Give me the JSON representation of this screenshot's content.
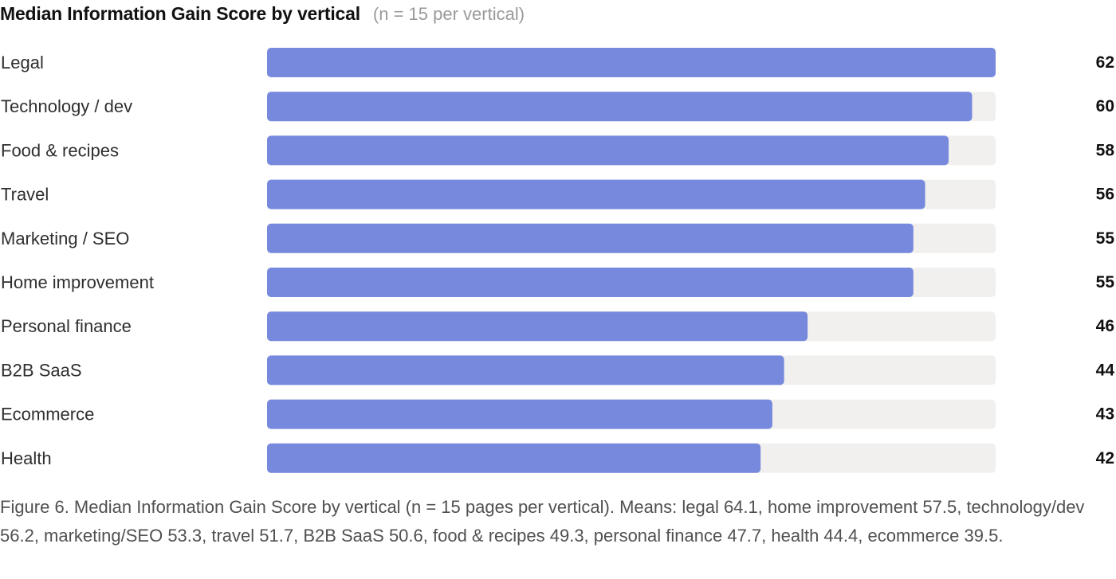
{
  "chart_data": {
    "type": "bar",
    "orientation": "horizontal",
    "title": "Median Information Gain Score by vertical",
    "subtitle": "(n = 15 per vertical)",
    "categories": [
      "Legal",
      "Technology / dev",
      "Food & recipes",
      "Travel",
      "Marketing / SEO",
      "Home improvement",
      "Personal finance",
      "B2B SaaS",
      "Ecommerce",
      "Health"
    ],
    "values": [
      62,
      60,
      58,
      56,
      55,
      55,
      46,
      44,
      43,
      42
    ],
    "xlim": [
      0,
      62
    ],
    "grid": false,
    "legend": "none",
    "data_labels": "right"
  },
  "caption": "Figure 6. Median Information Gain Score by vertical (n = 15 pages per vertical). Means: legal 64.1, home improvement 57.5, technology/dev 56.2, marketing/SEO 53.3, travel 51.7, B2B SaaS 50.6, food & recipes 49.3, personal finance 47.7, health 44.4, ecommerce 39.5.",
  "colors": {
    "bar": "#7789dc",
    "track": "#f1f0ef",
    "category_text": "#2f2f2f",
    "value_text": "#111111"
  }
}
